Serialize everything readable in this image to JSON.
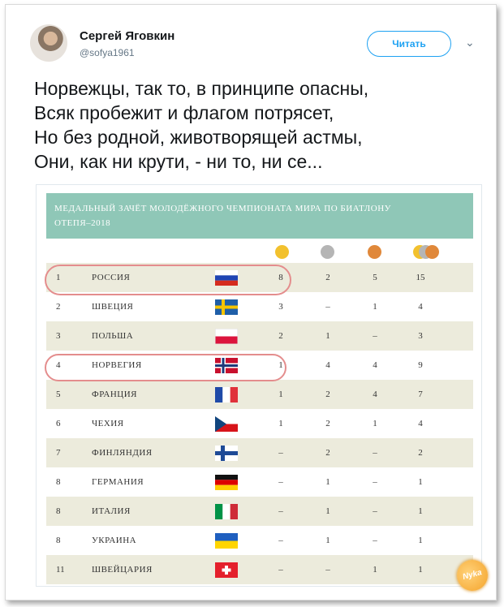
{
  "tweet": {
    "author_name": "Сергей Яговкин",
    "author_handle": "@sofya1961",
    "follow_label": "Читать",
    "lines": [
      "Норвежцы, так то, в принципе опасны,",
      "Всяк пробежит и флагом потрясет,",
      "Но без родной,  животворящей астмы,",
      "Они, как ни крути, - ни то, ни се..."
    ]
  },
  "card": {
    "title_line1": "МЕДАЛЬНЫЙ ЗАЧЁТ МОЛОДЁЖНОГО ЧЕМПИОНАТА МИРА ПО БИАТЛОНУ",
    "title_line2": "ОТЕПЯ–2018",
    "medal_colors": {
      "gold": "#f2c12e",
      "silver": "#b5b5b5",
      "bronze": "#e0883a"
    },
    "rows": [
      {
        "rank": "1",
        "country": "РОССИЯ",
        "flag": "russia",
        "gold": "8",
        "silver": "2",
        "bronze": "5",
        "total": "15"
      },
      {
        "rank": "2",
        "country": "ШВЕЦИЯ",
        "flag": "sweden",
        "gold": "3",
        "silver": "–",
        "bronze": "1",
        "total": "4"
      },
      {
        "rank": "3",
        "country": "ПОЛЬША",
        "flag": "poland",
        "gold": "2",
        "silver": "1",
        "bronze": "–",
        "total": "3"
      },
      {
        "rank": "4",
        "country": "НОРВЕГИЯ",
        "flag": "norway",
        "gold": "1",
        "silver": "4",
        "bronze": "4",
        "total": "9"
      },
      {
        "rank": "5",
        "country": "ФРАНЦИЯ",
        "flag": "france",
        "gold": "1",
        "silver": "2",
        "bronze": "4",
        "total": "7"
      },
      {
        "rank": "6",
        "country": "ЧЕХИЯ",
        "flag": "czech",
        "gold": "1",
        "silver": "2",
        "bronze": "1",
        "total": "4"
      },
      {
        "rank": "7",
        "country": "ФИНЛЯНДИЯ",
        "flag": "finland",
        "gold": "–",
        "silver": "2",
        "bronze": "–",
        "total": "2"
      },
      {
        "rank": "8",
        "country": "ГЕРМАНИЯ",
        "flag": "germany",
        "gold": "–",
        "silver": "1",
        "bronze": "–",
        "total": "1"
      },
      {
        "rank": "8",
        "country": "ИТАЛИЯ",
        "flag": "italy",
        "gold": "–",
        "silver": "1",
        "bronze": "–",
        "total": "1"
      },
      {
        "rank": "8",
        "country": "УКРАИНА",
        "flag": "ukraine",
        "gold": "–",
        "silver": "1",
        "bronze": "–",
        "total": "1"
      },
      {
        "rank": "11",
        "country": "ШВЕЙЦАРИЯ",
        "flag": "switzerland",
        "gold": "–",
        "silver": "–",
        "bronze": "1",
        "total": "1"
      }
    ]
  },
  "watermark": "Nyka"
}
